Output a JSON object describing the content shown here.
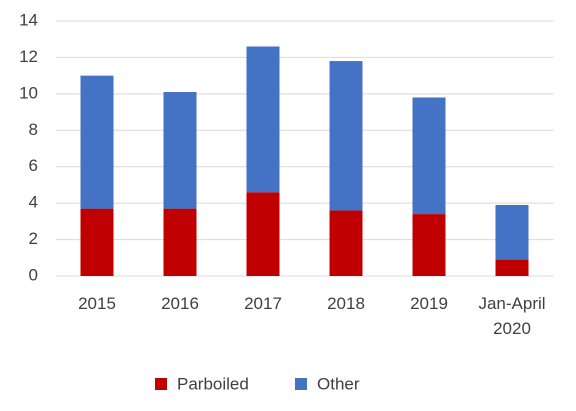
{
  "chart_data": {
    "type": "stacked_bar",
    "categories": [
      "2015",
      "2016",
      "2017",
      "2018",
      "2019",
      "Jan-April 2020"
    ],
    "series": [
      {
        "name": "Parboiled",
        "color": "#c00000",
        "values": [
          3.7,
          3.7,
          4.6,
          3.6,
          3.4,
          0.9
        ]
      },
      {
        "name": "Other",
        "color": "#4472c4",
        "values": [
          7.3,
          6.4,
          8.0,
          8.2,
          6.4,
          3.0
        ]
      }
    ],
    "ylim": [
      0,
      14
    ],
    "yticks": [
      0,
      2,
      4,
      6,
      8,
      10,
      12,
      14
    ],
    "grid": true,
    "legend": "bottom"
  }
}
